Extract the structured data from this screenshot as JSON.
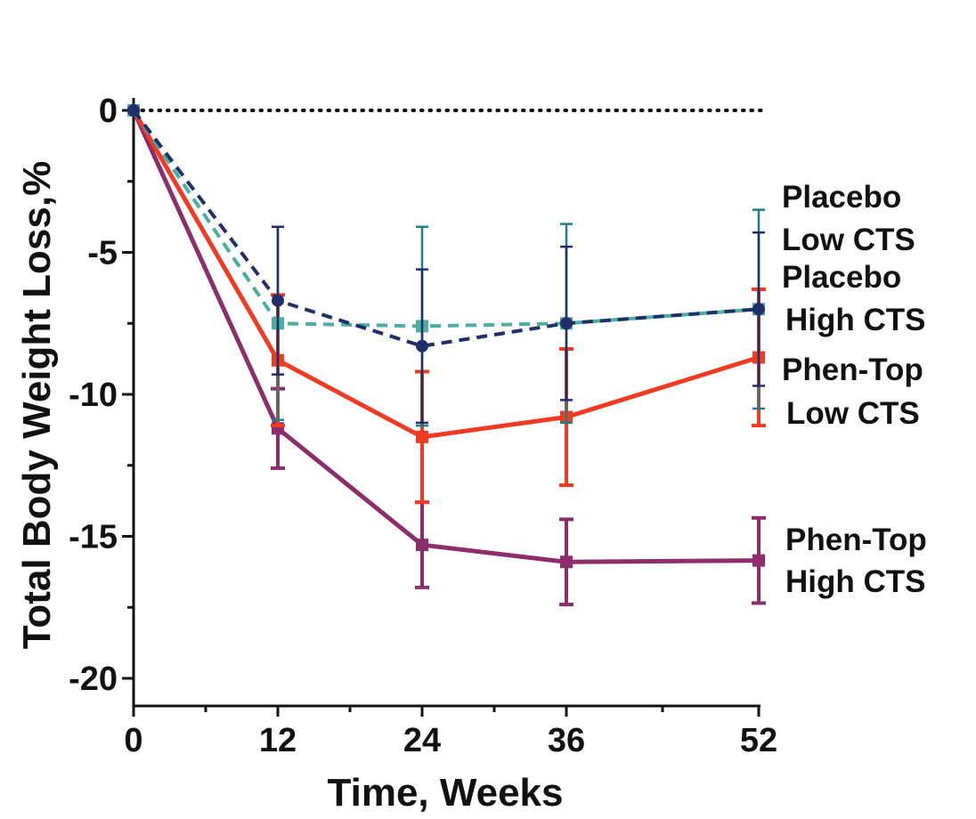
{
  "chart_data": {
    "type": "line",
    "title": "",
    "xlabel": "Time, Weeks",
    "ylabel": "Total Body Weight Loss,%",
    "x": [
      0,
      12,
      24,
      36,
      52
    ],
    "xticks": [
      "0",
      "12",
      "24",
      "36",
      "52"
    ],
    "yticks": [
      "0",
      "-5",
      "-10",
      "-15",
      "-20"
    ],
    "ytick_values": [
      0,
      -5,
      -10,
      -15,
      -20
    ],
    "xlim": [
      0,
      52
    ],
    "ylim": [
      -21,
      0
    ],
    "reference_line": 0,
    "grid": false,
    "legend_placement": "right, labels at line ends",
    "series": [
      {
        "name": "Placebo Low CTS",
        "label_lines": [
          "Placebo",
          "Low CTS"
        ],
        "color": "#1f2f6b",
        "style": "dashed",
        "marker": "circle",
        "values": [
          0,
          -6.7,
          -8.3,
          -7.5,
          -7.0
        ],
        "error": [
          0,
          2.6,
          2.7,
          2.7,
          2.7
        ]
      },
      {
        "name": "Placebo High CTS",
        "label_lines": [
          "Placebo",
          "High CTS"
        ],
        "color": "#4aaea0",
        "errcolor": "#1f7f86",
        "style": "dashed",
        "marker": "square",
        "values": [
          0,
          -7.5,
          -7.6,
          -7.5,
          -7.0
        ],
        "error": [
          0,
          3.4,
          3.5,
          3.5,
          3.5
        ]
      },
      {
        "name": "Phen-Top Low CTS",
        "label_lines": [
          "Phen-Top",
          "Low CTS"
        ],
        "color": "#f03a22",
        "style": "solid",
        "marker": "square",
        "values": [
          0,
          -8.8,
          -11.5,
          -10.8,
          -8.7
        ],
        "error": [
          0,
          2.3,
          2.3,
          2.4,
          2.4
        ]
      },
      {
        "name": "Phen-Top High CTS",
        "label_lines": [
          "Phen-Top",
          "High CTS"
        ],
        "color": "#8c2d6c",
        "style": "solid",
        "marker": "square",
        "values": [
          0,
          -11.2,
          -15.3,
          -15.9,
          -15.85
        ],
        "error": [
          0,
          1.4,
          1.5,
          1.5,
          1.5
        ]
      }
    ]
  }
}
